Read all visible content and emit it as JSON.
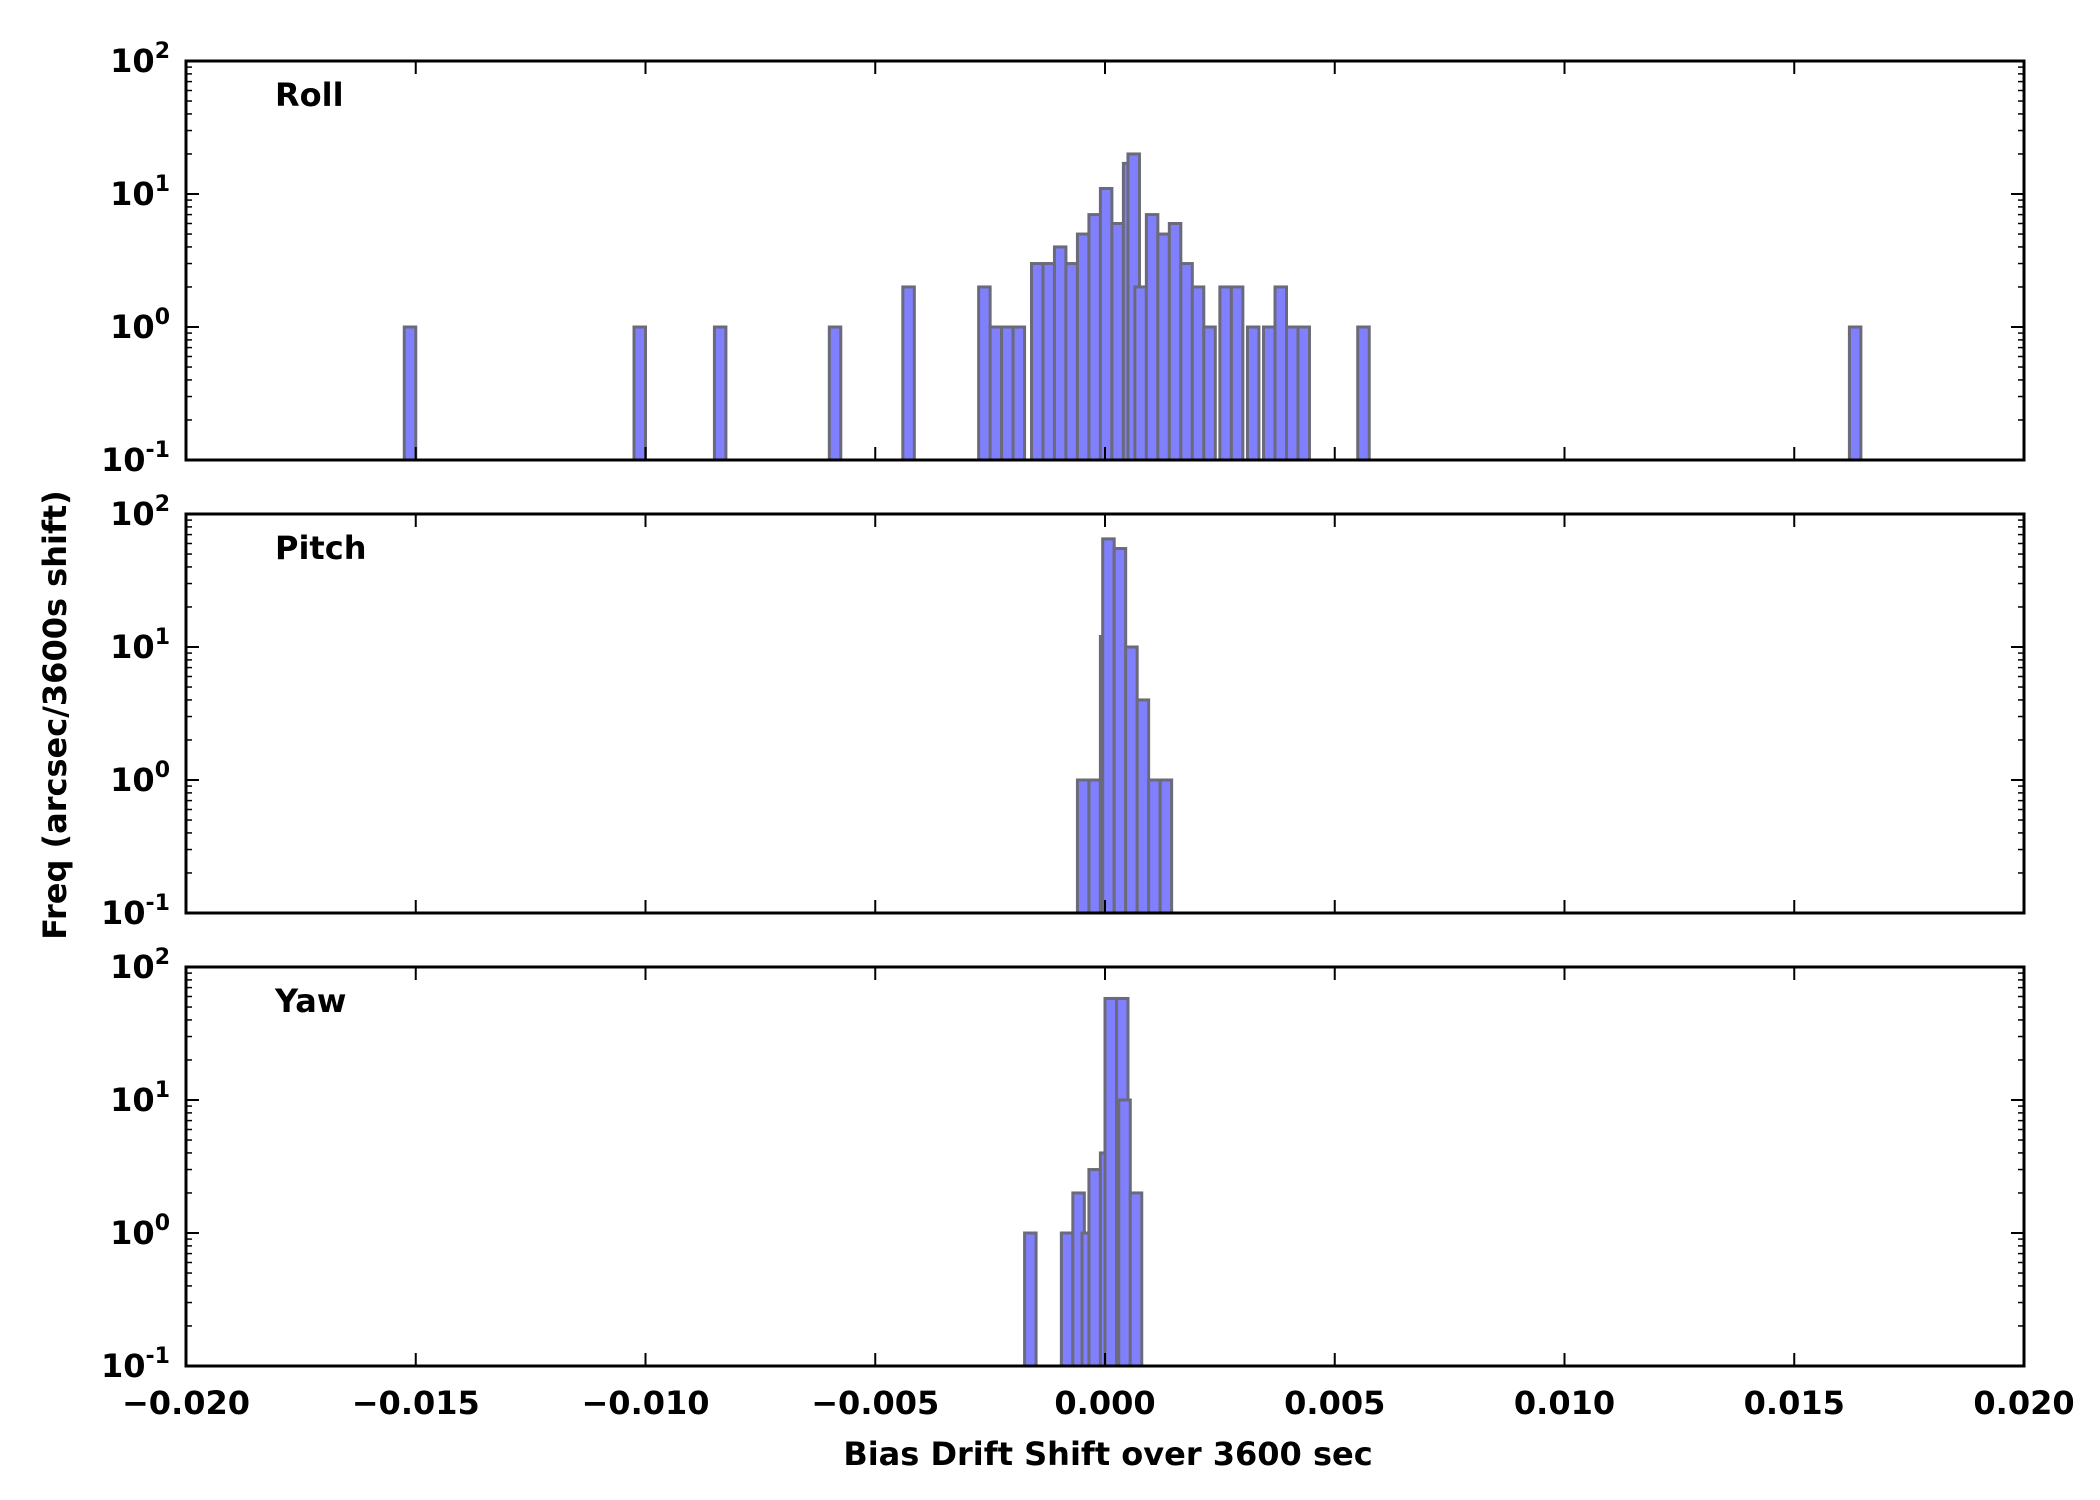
{
  "chart_data": [
    {
      "type": "histogram",
      "panel_label": "Roll",
      "yscale": "log",
      "ylim": [
        0.1,
        100
      ],
      "xlim": [
        -0.02,
        0.02
      ],
      "bin_width": 0.00025,
      "bars": [
        {
          "x": -0.01525,
          "y": 1
        },
        {
          "x": -0.01025,
          "y": 1
        },
        {
          "x": -0.0085,
          "y": 1
        },
        {
          "x": -0.006,
          "y": 1
        },
        {
          "x": -0.0044,
          "y": 2
        },
        {
          "x": -0.00275,
          "y": 2
        },
        {
          "x": -0.0025,
          "y": 1
        },
        {
          "x": -0.00225,
          "y": 1
        },
        {
          "x": -0.002,
          "y": 1
        },
        {
          "x": -0.0016,
          "y": 3
        },
        {
          "x": -0.00135,
          "y": 3
        },
        {
          "x": -0.0011,
          "y": 4
        },
        {
          "x": -0.00085,
          "y": 3
        },
        {
          "x": -0.0006,
          "y": 5
        },
        {
          "x": -0.00035,
          "y": 7
        },
        {
          "x": -0.0001,
          "y": 11
        },
        {
          "x": 0.00015,
          "y": 6
        },
        {
          "x": 0.0004,
          "y": 17
        },
        {
          "x": 0.0005,
          "y": 20
        },
        {
          "x": 0.00065,
          "y": 2
        },
        {
          "x": 0.0009,
          "y": 7
        },
        {
          "x": 0.00115,
          "y": 5
        },
        {
          "x": 0.0014,
          "y": 6
        },
        {
          "x": 0.00165,
          "y": 3
        },
        {
          "x": 0.0019,
          "y": 2
        },
        {
          "x": 0.00215,
          "y": 1
        },
        {
          "x": 0.0025,
          "y": 2
        },
        {
          "x": 0.00275,
          "y": 2
        },
        {
          "x": 0.0031,
          "y": 1
        },
        {
          "x": 0.00345,
          "y": 1
        },
        {
          "x": 0.0037,
          "y": 2
        },
        {
          "x": 0.00395,
          "y": 1
        },
        {
          "x": 0.0042,
          "y": 1
        },
        {
          "x": 0.0055,
          "y": 1
        },
        {
          "x": 0.0162,
          "y": 1
        }
      ]
    },
    {
      "type": "histogram",
      "panel_label": "Pitch",
      "yscale": "log",
      "ylim": [
        0.1,
        100
      ],
      "xlim": [
        -0.02,
        0.02
      ],
      "bin_width": 0.00025,
      "bars": [
        {
          "x": -0.0006,
          "y": 1
        },
        {
          "x": -0.00035,
          "y": 1
        },
        {
          "x": -0.0001,
          "y": 12
        },
        {
          "x": -5e-05,
          "y": 65
        },
        {
          "x": 0.0002,
          "y": 55
        },
        {
          "x": 0.00045,
          "y": 10
        },
        {
          "x": 0.0007,
          "y": 4
        },
        {
          "x": 0.00095,
          "y": 1
        },
        {
          "x": 0.0012,
          "y": 1
        }
      ]
    },
    {
      "type": "histogram",
      "panel_label": "Yaw",
      "yscale": "log",
      "ylim": [
        0.1,
        100
      ],
      "xlim": [
        -0.02,
        0.02
      ],
      "bin_width": 0.00025,
      "bars": [
        {
          "x": -0.00175,
          "y": 1
        },
        {
          "x": -0.00095,
          "y": 1
        },
        {
          "x": -0.0007,
          "y": 2
        },
        {
          "x": -0.0005,
          "y": 1
        },
        {
          "x": -0.00035,
          "y": 3
        },
        {
          "x": -0.0001,
          "y": 4
        },
        {
          "x": 0.00015,
          "y": 9
        },
        {
          "x": 0.0,
          "y": 58
        },
        {
          "x": 0.00025,
          "y": 58
        },
        {
          "x": 0.0003,
          "y": 10
        },
        {
          "x": 0.00055,
          "y": 2
        }
      ]
    }
  ],
  "axes": {
    "xlabel": "Bias Drift Shift over 3600 sec",
    "ylabel": "Freq (arcsec/3600s shift)",
    "xticks": [
      {
        "value": -0.02,
        "label": "−0.020"
      },
      {
        "value": -0.015,
        "label": "−0.015"
      },
      {
        "value": -0.01,
        "label": "−0.010"
      },
      {
        "value": -0.005,
        "label": "−0.005"
      },
      {
        "value": 0.0,
        "label": "0.000"
      },
      {
        "value": 0.005,
        "label": "0.005"
      },
      {
        "value": 0.01,
        "label": "0.010"
      },
      {
        "value": 0.015,
        "label": "0.015"
      },
      {
        "value": 0.02,
        "label": "0.020"
      }
    ],
    "yticks": [
      {
        "value": 0.1,
        "base": "10",
        "exp": "-1"
      },
      {
        "value": 1,
        "base": "10",
        "exp": "0"
      },
      {
        "value": 10,
        "base": "10",
        "exp": "1"
      },
      {
        "value": 100,
        "base": "10",
        "exp": "2"
      }
    ]
  },
  "colors": {
    "bar_fill": "#8080ff",
    "bar_edge": "#6a6a7a",
    "axis": "#000000"
  }
}
